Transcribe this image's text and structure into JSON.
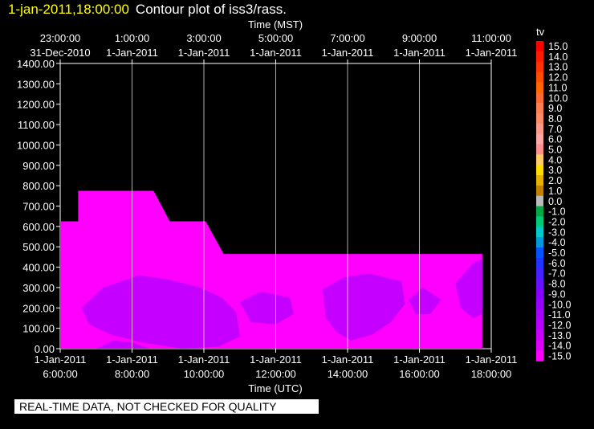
{
  "header": {
    "timestamp": "1-jan-2011,18:00:00",
    "title": "Contour plot of iss3/rass."
  },
  "quality_note": "REAL-TIME DATA, NOT CHECKED FOR QUALITY",
  "colors": {
    "background": "#000000",
    "grid": "#ffffff",
    "fill_main": "#ff00ff",
    "fill_dark": "#cc00ff"
  },
  "chart_data": {
    "type": "heatmap",
    "title": "Contour plot of iss3/rass.",
    "x_top_label": "Time (MST)",
    "x_bottom_label": "Time (UTC)",
    "y_ticks": [
      "1400.00",
      "1300.00",
      "1200.00",
      "1100.00",
      "1000.00",
      "900.00",
      "800.00",
      "700.00",
      "600.00",
      "500.00",
      "400.00",
      "300.00",
      "200.00",
      "100.00",
      "0.00"
    ],
    "ylim": [
      0,
      1400
    ],
    "xlim_hours_utc": [
      6,
      18
    ],
    "x_top_ticks": [
      {
        "hour": 6,
        "time": "23:00:00",
        "date": "31-Dec-2010"
      },
      {
        "hour": 8,
        "time": "1:00:00",
        "date": "1-Jan-2011"
      },
      {
        "hour": 10,
        "time": "3:00:00",
        "date": "1-Jan-2011"
      },
      {
        "hour": 12,
        "time": "5:00:00",
        "date": "1-Jan-2011"
      },
      {
        "hour": 14,
        "time": "7:00:00",
        "date": "1-Jan-2011"
      },
      {
        "hour": 16,
        "time": "9:00:00",
        "date": "1-Jan-2011"
      },
      {
        "hour": 18,
        "time": "11:00:00",
        "date": "1-Jan-2011"
      }
    ],
    "x_bottom_ticks": [
      {
        "hour": 6,
        "date": "1-Jan-2011",
        "time": "6:00:00"
      },
      {
        "hour": 8,
        "date": "1-Jan-2011",
        "time": "8:00:00"
      },
      {
        "hour": 10,
        "date": "1-Jan-2011",
        "time": "10:00:00"
      },
      {
        "hour": 12,
        "date": "1-Jan-2011",
        "time": "12:00:00"
      },
      {
        "hour": 14,
        "date": "1-Jan-2011",
        "time": "14:00:00"
      },
      {
        "hour": 16,
        "date": "1-Jan-2011",
        "time": "16:00:00"
      },
      {
        "hour": 18,
        "date": "1-Jan-2011",
        "time": "18:00:00"
      }
    ],
    "data_envelope": [
      [
        6.0,
        0
      ],
      [
        6.0,
        625
      ],
      [
        6.5,
        625
      ],
      [
        6.5,
        775
      ],
      [
        8.6,
        775
      ],
      [
        9.05,
        625
      ],
      [
        10.05,
        625
      ],
      [
        10.55,
        465
      ],
      [
        17.75,
        465
      ],
      [
        17.75,
        0
      ]
    ],
    "data_regions": [
      {
        "value": -15.0,
        "note": "most of the data area"
      },
      {
        "value": -12.0,
        "note": "patches near bottom"
      }
    ],
    "colorbar": {
      "label": "tv",
      "levels": [
        {
          "label": "15.0",
          "color": "#ff0000"
        },
        {
          "label": "14.0",
          "color": "#ff1a00"
        },
        {
          "label": "13.0",
          "color": "#ff3300"
        },
        {
          "label": "12.0",
          "color": "#ff4d00"
        },
        {
          "label": "11.0",
          "color": "#ff6600"
        },
        {
          "label": "10.0",
          "color": "#ff6a33"
        },
        {
          "label": "9.0",
          "color": "#ff7f4f"
        },
        {
          "label": "8.0",
          "color": "#ff8c66"
        },
        {
          "label": "7.0",
          "color": "#ff9a8a"
        },
        {
          "label": "6.0",
          "color": "#ffa6a6"
        },
        {
          "label": "5.0",
          "color": "#ff9090"
        },
        {
          "label": "4.0",
          "color": "#ffcc66"
        },
        {
          "label": "3.0",
          "color": "#ffdd00"
        },
        {
          "label": "2.0",
          "color": "#e8b000"
        },
        {
          "label": "1.0",
          "color": "#c08000"
        },
        {
          "label": "0.0",
          "color": "#bbbbbb"
        },
        {
          "label": "-1.0",
          "color": "#00aa44"
        },
        {
          "label": "-2.0",
          "color": "#00cc77"
        },
        {
          "label": "-3.0",
          "color": "#00cccc"
        },
        {
          "label": "-4.0",
          "color": "#0099dd"
        },
        {
          "label": "-5.0",
          "color": "#0055ff"
        },
        {
          "label": "-6.0",
          "color": "#2233ff"
        },
        {
          "label": "-7.0",
          "color": "#4422ff"
        },
        {
          "label": "-8.0",
          "color": "#6611ff"
        },
        {
          "label": "-9.0",
          "color": "#8800ff"
        },
        {
          "label": "-10.0",
          "color": "#9900ff"
        },
        {
          "label": "-11.0",
          "color": "#aa00ff"
        },
        {
          "label": "-12.0",
          "color": "#bb00ff"
        },
        {
          "label": "-13.0",
          "color": "#cc00ff"
        },
        {
          "label": "-14.0",
          "color": "#dd00ff"
        },
        {
          "label": "-15.0",
          "color": "#ff00ff"
        }
      ]
    }
  }
}
